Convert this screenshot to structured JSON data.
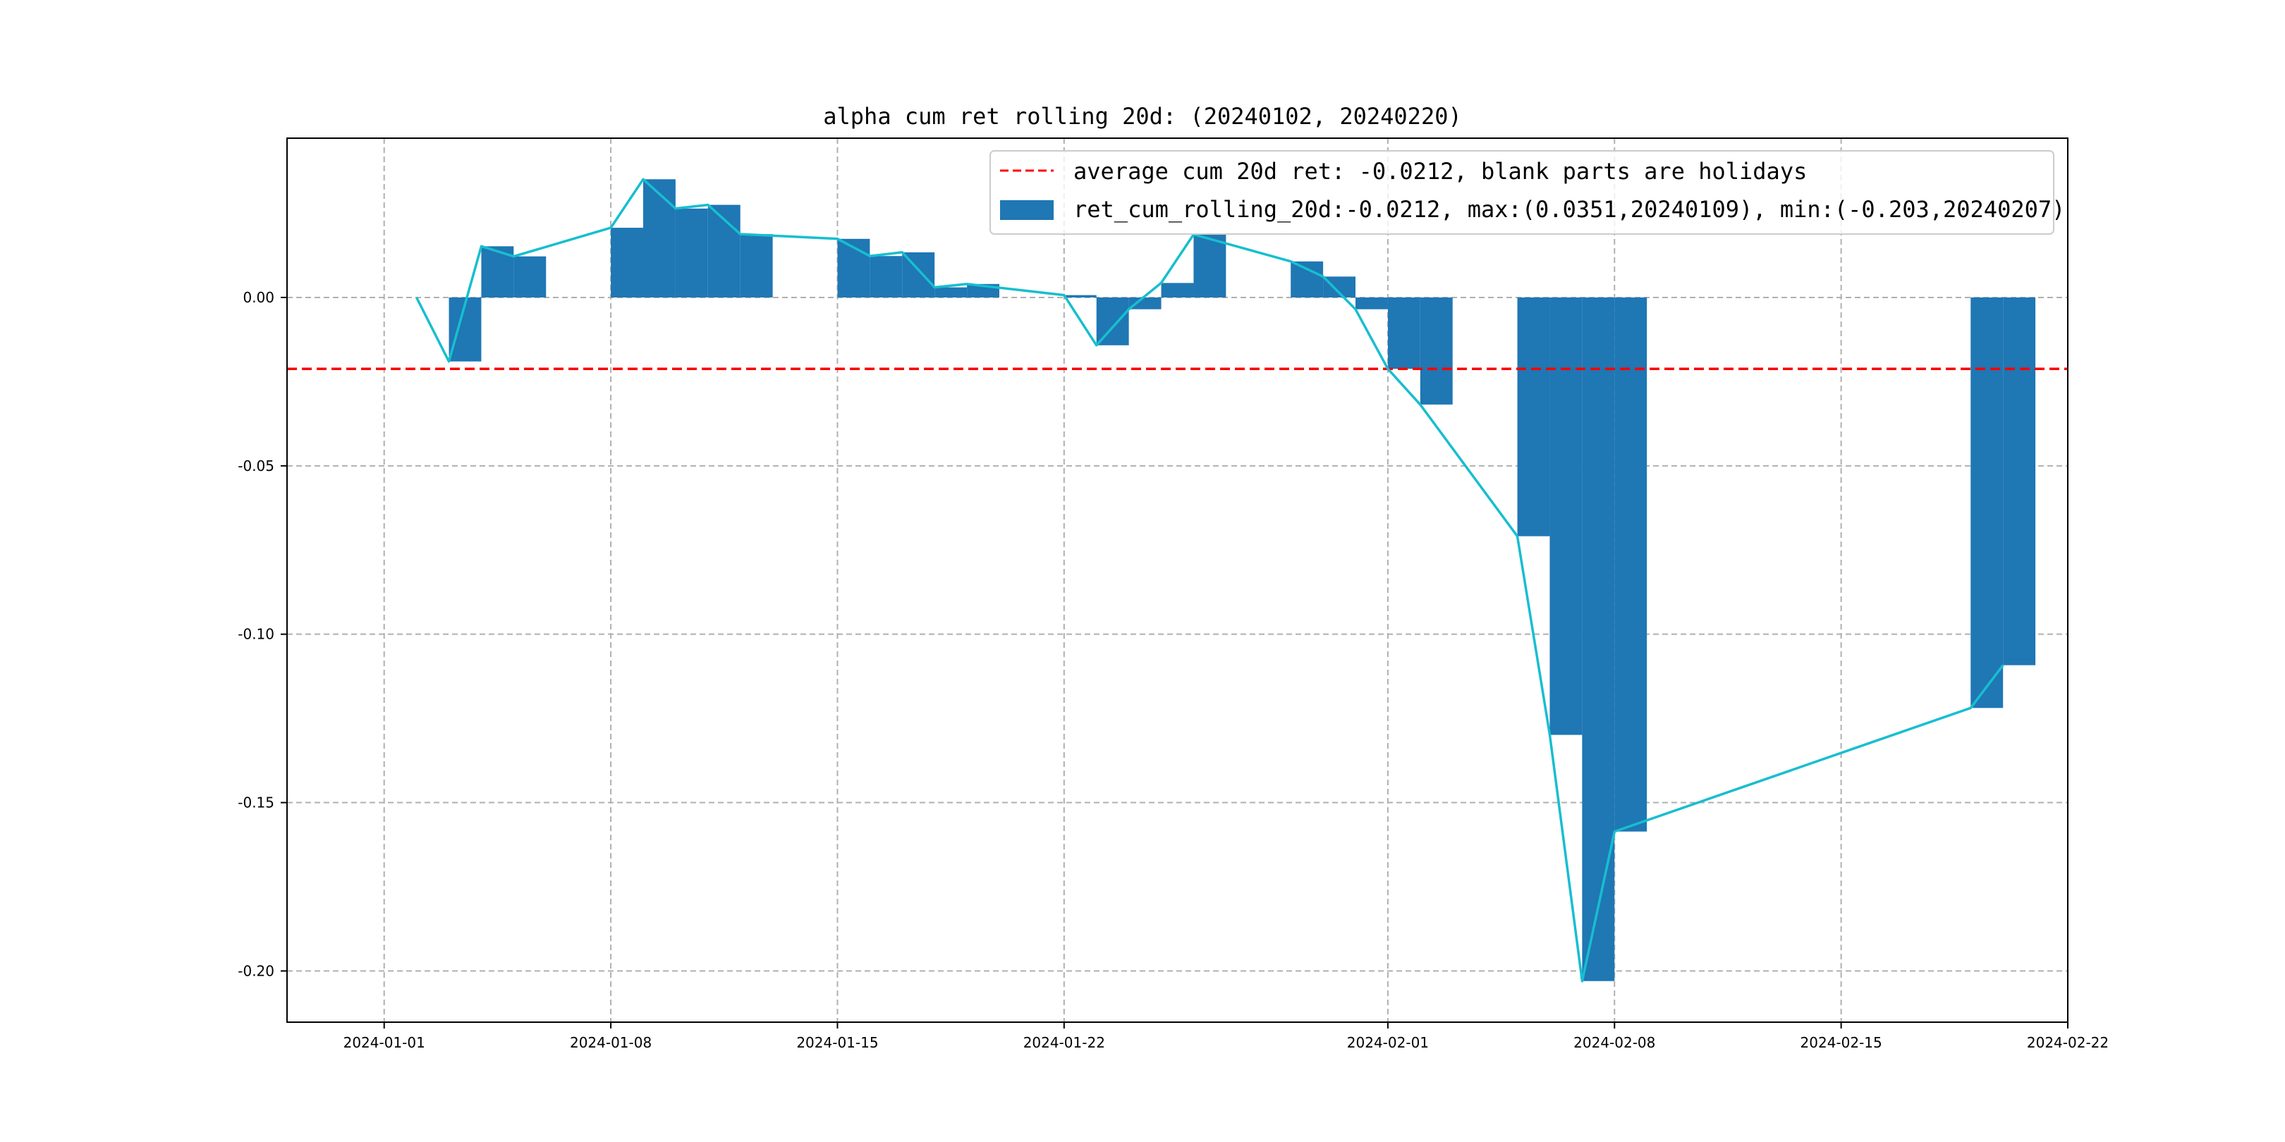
{
  "chart_data": {
    "type": "bar",
    "title": "alpha cum ret rolling 20d: (20240102, 20240220)",
    "xlabel": "",
    "ylabel": "",
    "x_range": [
      "2023-12-29",
      "2024-02-22"
    ],
    "ylim": [
      -0.2152,
      0.0473
    ],
    "grid": true,
    "legend_placement": "top-right",
    "x_ticks": [
      "2024-01-01",
      "2024-01-08",
      "2024-01-15",
      "2024-01-22",
      "2024-02-01",
      "2024-02-08",
      "2024-02-15",
      "2024-02-22"
    ],
    "y_ticks": [
      0.0,
      -0.05,
      -0.1,
      -0.15,
      -0.2
    ],
    "y_tick_labels": [
      "0.00",
      "-0.05",
      "-0.10",
      "-0.15",
      "-0.20"
    ],
    "dates": [
      "2024-01-02",
      "2024-01-03",
      "2024-01-04",
      "2024-01-05",
      "2024-01-08",
      "2024-01-09",
      "2024-01-10",
      "2024-01-11",
      "2024-01-12",
      "2024-01-15",
      "2024-01-16",
      "2024-01-17",
      "2024-01-18",
      "2024-01-19",
      "2024-01-22",
      "2024-01-23",
      "2024-01-24",
      "2024-01-25",
      "2024-01-26",
      "2024-01-29",
      "2024-01-30",
      "2024-01-31",
      "2024-02-01",
      "2024-02-02",
      "2024-02-05",
      "2024-02-06",
      "2024-02-07",
      "2024-02-08",
      "2024-02-19",
      "2024-02-20"
    ],
    "values": [
      0.0,
      -0.019,
      0.0152,
      0.0122,
      0.0207,
      0.0351,
      0.0264,
      0.0275,
      0.0188,
      0.0174,
      0.0123,
      0.0134,
      0.003,
      0.004,
      0.0007,
      -0.0142,
      -0.0035,
      0.0043,
      0.0187,
      0.0107,
      0.0062,
      -0.0035,
      -0.0212,
      -0.0318,
      -0.0709,
      -0.1299,
      -0.203,
      -0.1586,
      -0.1219,
      -0.1092
    ],
    "series": [
      {
        "name": "ret_cum_rolling_20d:-0.0212, max:(0.0351,20240109), min:(-0.203,20240207)",
        "kind": "bar",
        "color": "#1f77b4"
      },
      {
        "name": "",
        "kind": "line",
        "color": "#17becf"
      }
    ],
    "reference_line": {
      "value": -0.0212,
      "color": "#ff0000",
      "style": "dashed",
      "label": "average cum 20d ret: -0.0212, blank parts are holidays"
    }
  }
}
